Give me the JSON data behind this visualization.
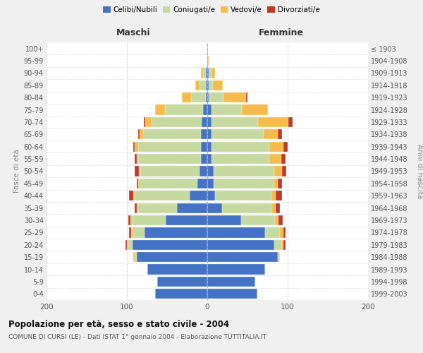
{
  "age_groups": [
    "0-4",
    "5-9",
    "10-14",
    "15-19",
    "20-24",
    "25-29",
    "30-34",
    "35-39",
    "40-44",
    "45-49",
    "50-54",
    "55-59",
    "60-64",
    "65-69",
    "70-74",
    "75-79",
    "80-84",
    "85-89",
    "90-94",
    "95-99",
    "100+"
  ],
  "birth_years": [
    "1999-2003",
    "1994-1998",
    "1989-1993",
    "1984-1988",
    "1979-1983",
    "1974-1978",
    "1969-1973",
    "1964-1968",
    "1959-1963",
    "1954-1958",
    "1949-1953",
    "1944-1948",
    "1939-1943",
    "1934-1938",
    "1929-1933",
    "1924-1928",
    "1919-1923",
    "1914-1918",
    "1909-1913",
    "1904-1908",
    "≤ 1903"
  ],
  "males": {
    "celibi": [
      65,
      62,
      75,
      88,
      93,
      78,
      52,
      38,
      22,
      12,
      10,
      8,
      8,
      8,
      7,
      5,
      2,
      2,
      2,
      0,
      0
    ],
    "coniugati": [
      0,
      0,
      0,
      2,
      5,
      15,
      42,
      48,
      68,
      72,
      73,
      78,
      78,
      72,
      62,
      48,
      18,
      8,
      3,
      0,
      0
    ],
    "vedovi": [
      0,
      0,
      0,
      2,
      2,
      2,
      2,
      2,
      2,
      2,
      2,
      2,
      4,
      4,
      8,
      12,
      12,
      5,
      3,
      0,
      0
    ],
    "divorziati": [
      0,
      0,
      0,
      0,
      2,
      2,
      2,
      2,
      5,
      2,
      5,
      2,
      2,
      2,
      2,
      0,
      0,
      0,
      0,
      0,
      0
    ]
  },
  "females": {
    "nubili": [
      62,
      60,
      72,
      88,
      83,
      72,
      42,
      18,
      10,
      8,
      8,
      5,
      5,
      5,
      5,
      5,
      2,
      2,
      2,
      0,
      0
    ],
    "coniugate": [
      0,
      0,
      0,
      2,
      10,
      18,
      42,
      62,
      70,
      75,
      75,
      72,
      72,
      65,
      58,
      38,
      18,
      5,
      3,
      0,
      0
    ],
    "vedove": [
      0,
      0,
      0,
      0,
      2,
      5,
      5,
      5,
      5,
      5,
      10,
      15,
      18,
      18,
      38,
      32,
      28,
      12,
      5,
      2,
      1
    ],
    "divorziate": [
      0,
      0,
      0,
      0,
      2,
      2,
      5,
      5,
      8,
      5,
      5,
      5,
      5,
      5,
      5,
      0,
      2,
      0,
      0,
      0,
      0
    ]
  },
  "colors": {
    "celibi_nubili": "#4472c4",
    "coniugati": "#c5d9a0",
    "vedovi": "#f5bc4c",
    "divorziati": "#c0392b"
  },
  "xlim": 200,
  "title": "Popolazione per età, sesso e stato civile - 2004",
  "subtitle": "COMUNE DI CURSI (LE) - Dati ISTAT 1° gennaio 2004 - Elaborazione TUTTITALIA.IT",
  "ylabel_left": "Fasce di età",
  "ylabel_right": "Anni di nascita",
  "xlabel_left": "Maschi",
  "xlabel_right": "Femmine",
  "bg_color": "#f0f0f0",
  "plot_bg_color": "#ffffff",
  "grid_color": "#cccccc"
}
